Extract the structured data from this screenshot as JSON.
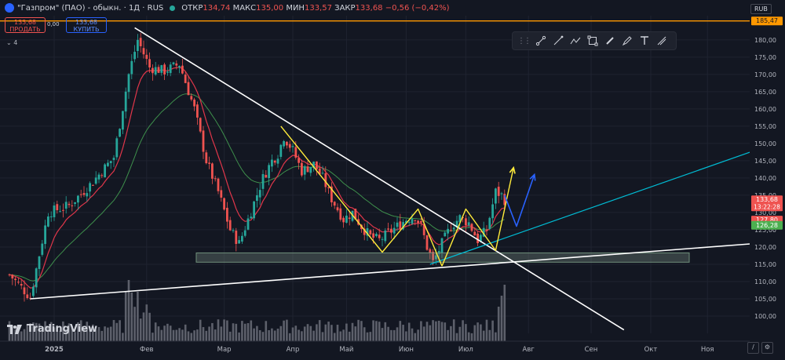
{
  "header": {
    "symbol": "\"Газпром\" (ПАО) - обыкн. · 1Д · RUS",
    "open_label": "ОТКР",
    "open": "134,74",
    "high_label": "МАКС",
    "high": "135,00",
    "low_label": "МИН",
    "low": "133,57",
    "close_label": "ЗАКР",
    "close": "133,68",
    "change": "−0,56 (−0,42%)",
    "currency": "RUB"
  },
  "trade": {
    "sell_price": "133,68",
    "sell_label": "ПРОДАТЬ",
    "buy_price": "133,68",
    "buy_label": "КУПИТЬ",
    "spread": "0,00"
  },
  "indicators_count": "4",
  "watermark": "TradingView",
  "icons": [
    "drag-handle-icon",
    "trend-line-icon",
    "ray-icon",
    "polyline-icon",
    "rectangle-icon",
    "brush-icon",
    "pen-icon",
    "text-icon",
    "measure-icon"
  ],
  "colors": {
    "up": "#26a69a",
    "down": "#ef5350",
    "ema_fast": "#e0364a",
    "ma_slow": "#3e8f4c",
    "level": "#ff9800",
    "pattern_yellow": "#ffeb3b",
    "arrow_blue": "#2962ff",
    "line_cyan": "#00bcd4"
  },
  "chart_data": {
    "type": "candlestick",
    "currency": "RUB",
    "ylim": [
      95,
      187
    ],
    "y_ticks": [
      100,
      105,
      110,
      115,
      120,
      125,
      130,
      135,
      140,
      145,
      150,
      155,
      160,
      165,
      170,
      175,
      180
    ],
    "x_labels": [
      "2025",
      "Фев",
      "Мар",
      "Апр",
      "Май",
      "Июн",
      "Июл",
      "Авг",
      "Сен",
      "Окт",
      "Ноя"
    ],
    "price_tags": [
      {
        "value": 185.47,
        "text": "185,47",
        "color": "#ff9800"
      },
      {
        "value": 133.68,
        "text": "133,68",
        "sub": "13:22:28",
        "color": "#ef5350"
      },
      {
        "value": 127.8,
        "text": "127,80",
        "color": "#ef5350"
      },
      {
        "value": 126.28,
        "text": "126,28",
        "color": "#4caf50"
      }
    ],
    "horizontal_level": 185.47,
    "support_zone": [
      115.6,
      118.3
    ],
    "anchors": [
      {
        "t": 0,
        "p": 112
      },
      {
        "t": 7,
        "p": 105.5
      },
      {
        "t": 13,
        "p": 130
      },
      {
        "t": 20,
        "p": 132
      },
      {
        "t": 27,
        "p": 138
      },
      {
        "t": 35,
        "p": 146
      },
      {
        "t": 40,
        "p": 170
      },
      {
        "t": 43,
        "p": 180
      },
      {
        "t": 47,
        "p": 172
      },
      {
        "t": 52,
        "p": 171
      },
      {
        "t": 57,
        "p": 173
      },
      {
        "t": 62,
        "p": 160
      },
      {
        "t": 66,
        "p": 145
      },
      {
        "t": 70,
        "p": 136
      },
      {
        "t": 74,
        "p": 125
      },
      {
        "t": 77,
        "p": 121
      },
      {
        "t": 80,
        "p": 128
      },
      {
        "t": 85,
        "p": 140
      },
      {
        "t": 88,
        "p": 145
      },
      {
        "t": 90,
        "p": 147
      },
      {
        "t": 92,
        "p": 152
      },
      {
        "t": 95,
        "p": 148
      },
      {
        "t": 98,
        "p": 142
      },
      {
        "t": 102,
        "p": 144
      },
      {
        "t": 105,
        "p": 140
      },
      {
        "t": 108,
        "p": 134
      },
      {
        "t": 112,
        "p": 128
      },
      {
        "t": 115,
        "p": 130
      },
      {
        "t": 118,
        "p": 126
      },
      {
        "t": 121,
        "p": 123
      },
      {
        "t": 124,
        "p": 122
      },
      {
        "t": 127,
        "p": 124
      },
      {
        "t": 130,
        "p": 126
      },
      {
        "t": 133,
        "p": 128
      },
      {
        "t": 136,
        "p": 129
      },
      {
        "t": 138,
        "p": 126
      },
      {
        "t": 140,
        "p": 120
      },
      {
        "t": 142,
        "p": 115.5
      },
      {
        "t": 145,
        "p": 121
      },
      {
        "t": 148,
        "p": 126
      },
      {
        "t": 151,
        "p": 128.5
      },
      {
        "t": 154,
        "p": 127
      },
      {
        "t": 157,
        "p": 122
      },
      {
        "t": 160,
        "p": 125
      },
      {
        "t": 163,
        "p": 136
      },
      {
        "t": 165,
        "p": 135
      },
      {
        "t": 166,
        "p": 133.7
      }
    ],
    "drawings": {
      "downtrend": [
        {
          "t": 42,
          "p": 183.5
        },
        {
          "t": 206,
          "p": 96
        }
      ],
      "uptrend_support": [
        {
          "t": 7,
          "p": 105
        },
        {
          "t": 250,
          "p": 121
        }
      ],
      "rising_line": [
        {
          "t": 141,
          "p": 115
        },
        {
          "t": 250,
          "p": 148
        }
      ],
      "pattern_left": [
        {
          "t": 91,
          "p": 155
        },
        {
          "t": 125,
          "p": 118.5
        },
        {
          "t": 137,
          "p": 131
        },
        {
          "t": 145,
          "p": 114.5
        }
      ],
      "pattern_right": [
        {
          "t": 145,
          "p": 114.5
        },
        {
          "t": 153,
          "p": 131
        },
        {
          "t": 163,
          "p": 119
        },
        {
          "t": 169,
          "p": 143
        }
      ],
      "arrow_blue": [
        {
          "t": 166,
          "p": 135
        },
        {
          "t": 170,
          "p": 126
        },
        {
          "t": 176,
          "p": 141
        }
      ]
    }
  }
}
